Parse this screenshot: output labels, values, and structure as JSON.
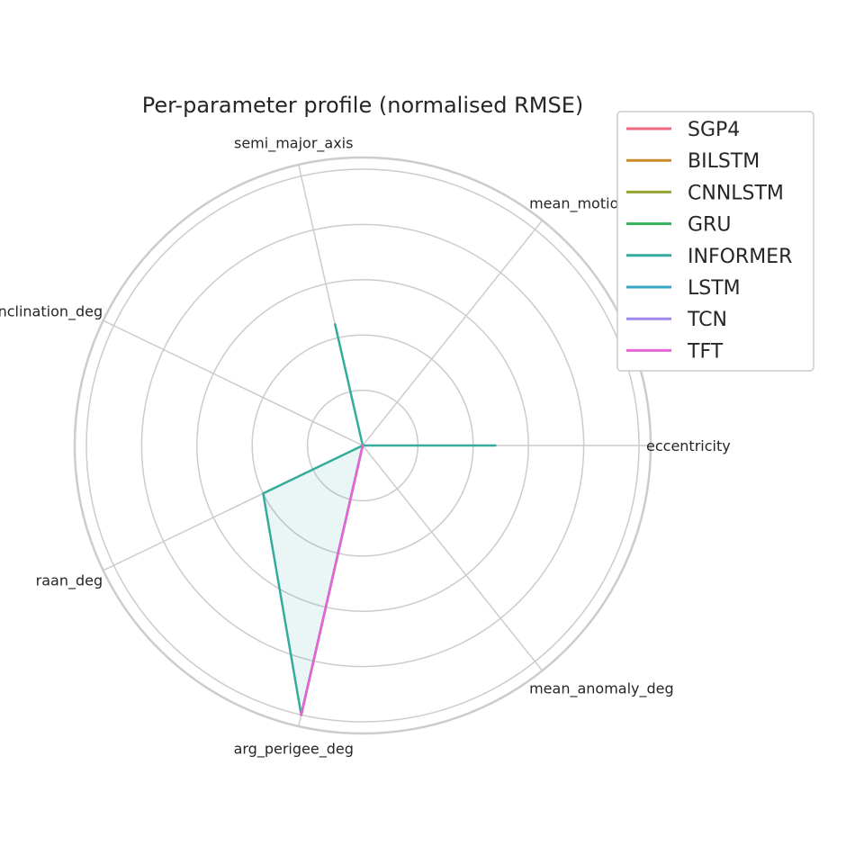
{
  "chart_data": {
    "type": "radar",
    "title": "Per-parameter profile (normalised RMSE)",
    "axes": [
      "eccentricity",
      "mean_motion",
      "semi_major_axis",
      "inclination_deg",
      "raan_deg",
      "arg_perigee_deg",
      "mean_anomaly_deg"
    ],
    "rlim": [
      0,
      1.0
    ],
    "grid": true,
    "legend_position": "top-right",
    "series": [
      {
        "name": "SGP4",
        "color": "#f0677e",
        "values": [
          0,
          0,
          0,
          0,
          0,
          1.0,
          0
        ],
        "fill": false
      },
      {
        "name": "BILSTM",
        "color": "#cc8a2b",
        "values": [
          0,
          0,
          0,
          0,
          0,
          1.0,
          0
        ],
        "fill": false
      },
      {
        "name": "CNNLSTM",
        "color": "#96a32f",
        "values": [
          0,
          0,
          0,
          0,
          0,
          1.0,
          0
        ],
        "fill": false
      },
      {
        "name": "GRU",
        "color": "#33b05c",
        "values": [
          0,
          0,
          0,
          0,
          0,
          1.0,
          0
        ],
        "fill": false
      },
      {
        "name": "INFORMER",
        "color": "#35ab9d",
        "values": [
          0.48,
          0,
          0.45,
          0,
          0.4,
          1.0,
          0
        ],
        "fill": true
      },
      {
        "name": "LSTM",
        "color": "#38a6c6",
        "values": [
          0,
          0,
          0,
          0,
          0,
          1.0,
          0
        ],
        "fill": false
      },
      {
        "name": "TCN",
        "color": "#a18aeb",
        "values": [
          0,
          0,
          0,
          0,
          0,
          1.0,
          0
        ],
        "fill": false
      },
      {
        "name": "TFT",
        "color": "#e863d4",
        "values": [
          0,
          0,
          0,
          0,
          0,
          1.0,
          0
        ],
        "fill": false
      }
    ]
  }
}
